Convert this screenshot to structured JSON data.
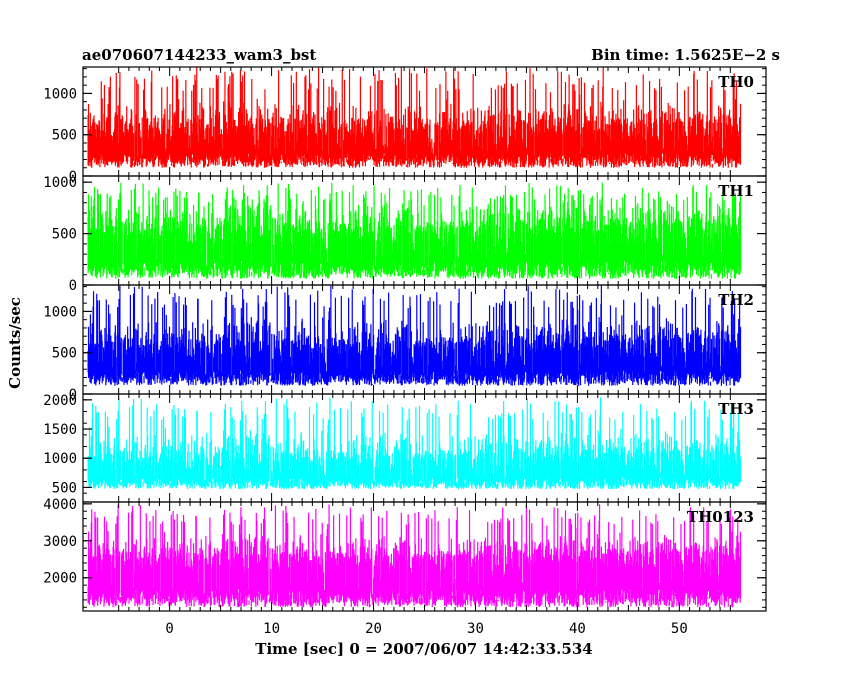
{
  "chart_data": {
    "type": "line",
    "title": "ae070607144233_wam3_bst",
    "subtitle": "Bin time: 1.5625E−2 s",
    "xlabel": "Time [sec] 0 = 2007/06/07 14:42:33.534",
    "ylabel": "Counts/sec",
    "xlim": [
      -8.5,
      58.5
    ],
    "xticks": [
      0,
      10,
      20,
      30,
      40,
      50
    ],
    "data_x_range": [
      -8,
      56
    ],
    "panels": [
      {
        "name": "TH0",
        "color": "#ff0000",
        "ylim": [
          0,
          1320
        ],
        "yticks": [
          0,
          500,
          1000
        ],
        "baseline": 100,
        "mean": 600,
        "spread": 230,
        "max": 1320
      },
      {
        "name": "TH1",
        "color": "#00ff00",
        "ylim": [
          0,
          1060
        ],
        "yticks": [
          0,
          500,
          1000
        ],
        "baseline": 60,
        "mean": 560,
        "spread": 210,
        "max": 1000
      },
      {
        "name": "TH2",
        "color": "#0000ff",
        "ylim": [
          0,
          1320
        ],
        "yticks": [
          0,
          500,
          1000
        ],
        "baseline": 100,
        "mean": 620,
        "spread": 240,
        "max": 1320
      },
      {
        "name": "TH3",
        "color": "#00ffff",
        "ylim": [
          250,
          2100
        ],
        "yticks": [
          500,
          1000,
          1500,
          2000
        ],
        "baseline": 470,
        "mean": 1050,
        "spread": 330,
        "max": 2050
      },
      {
        "name": "TH0123",
        "color": "#ff00ff",
        "ylim": [
          1100,
          4050
        ],
        "yticks": [
          2000,
          3000,
          4000
        ],
        "baseline": 1200,
        "mean": 2600,
        "spread": 450,
        "max": 4000
      }
    ]
  }
}
